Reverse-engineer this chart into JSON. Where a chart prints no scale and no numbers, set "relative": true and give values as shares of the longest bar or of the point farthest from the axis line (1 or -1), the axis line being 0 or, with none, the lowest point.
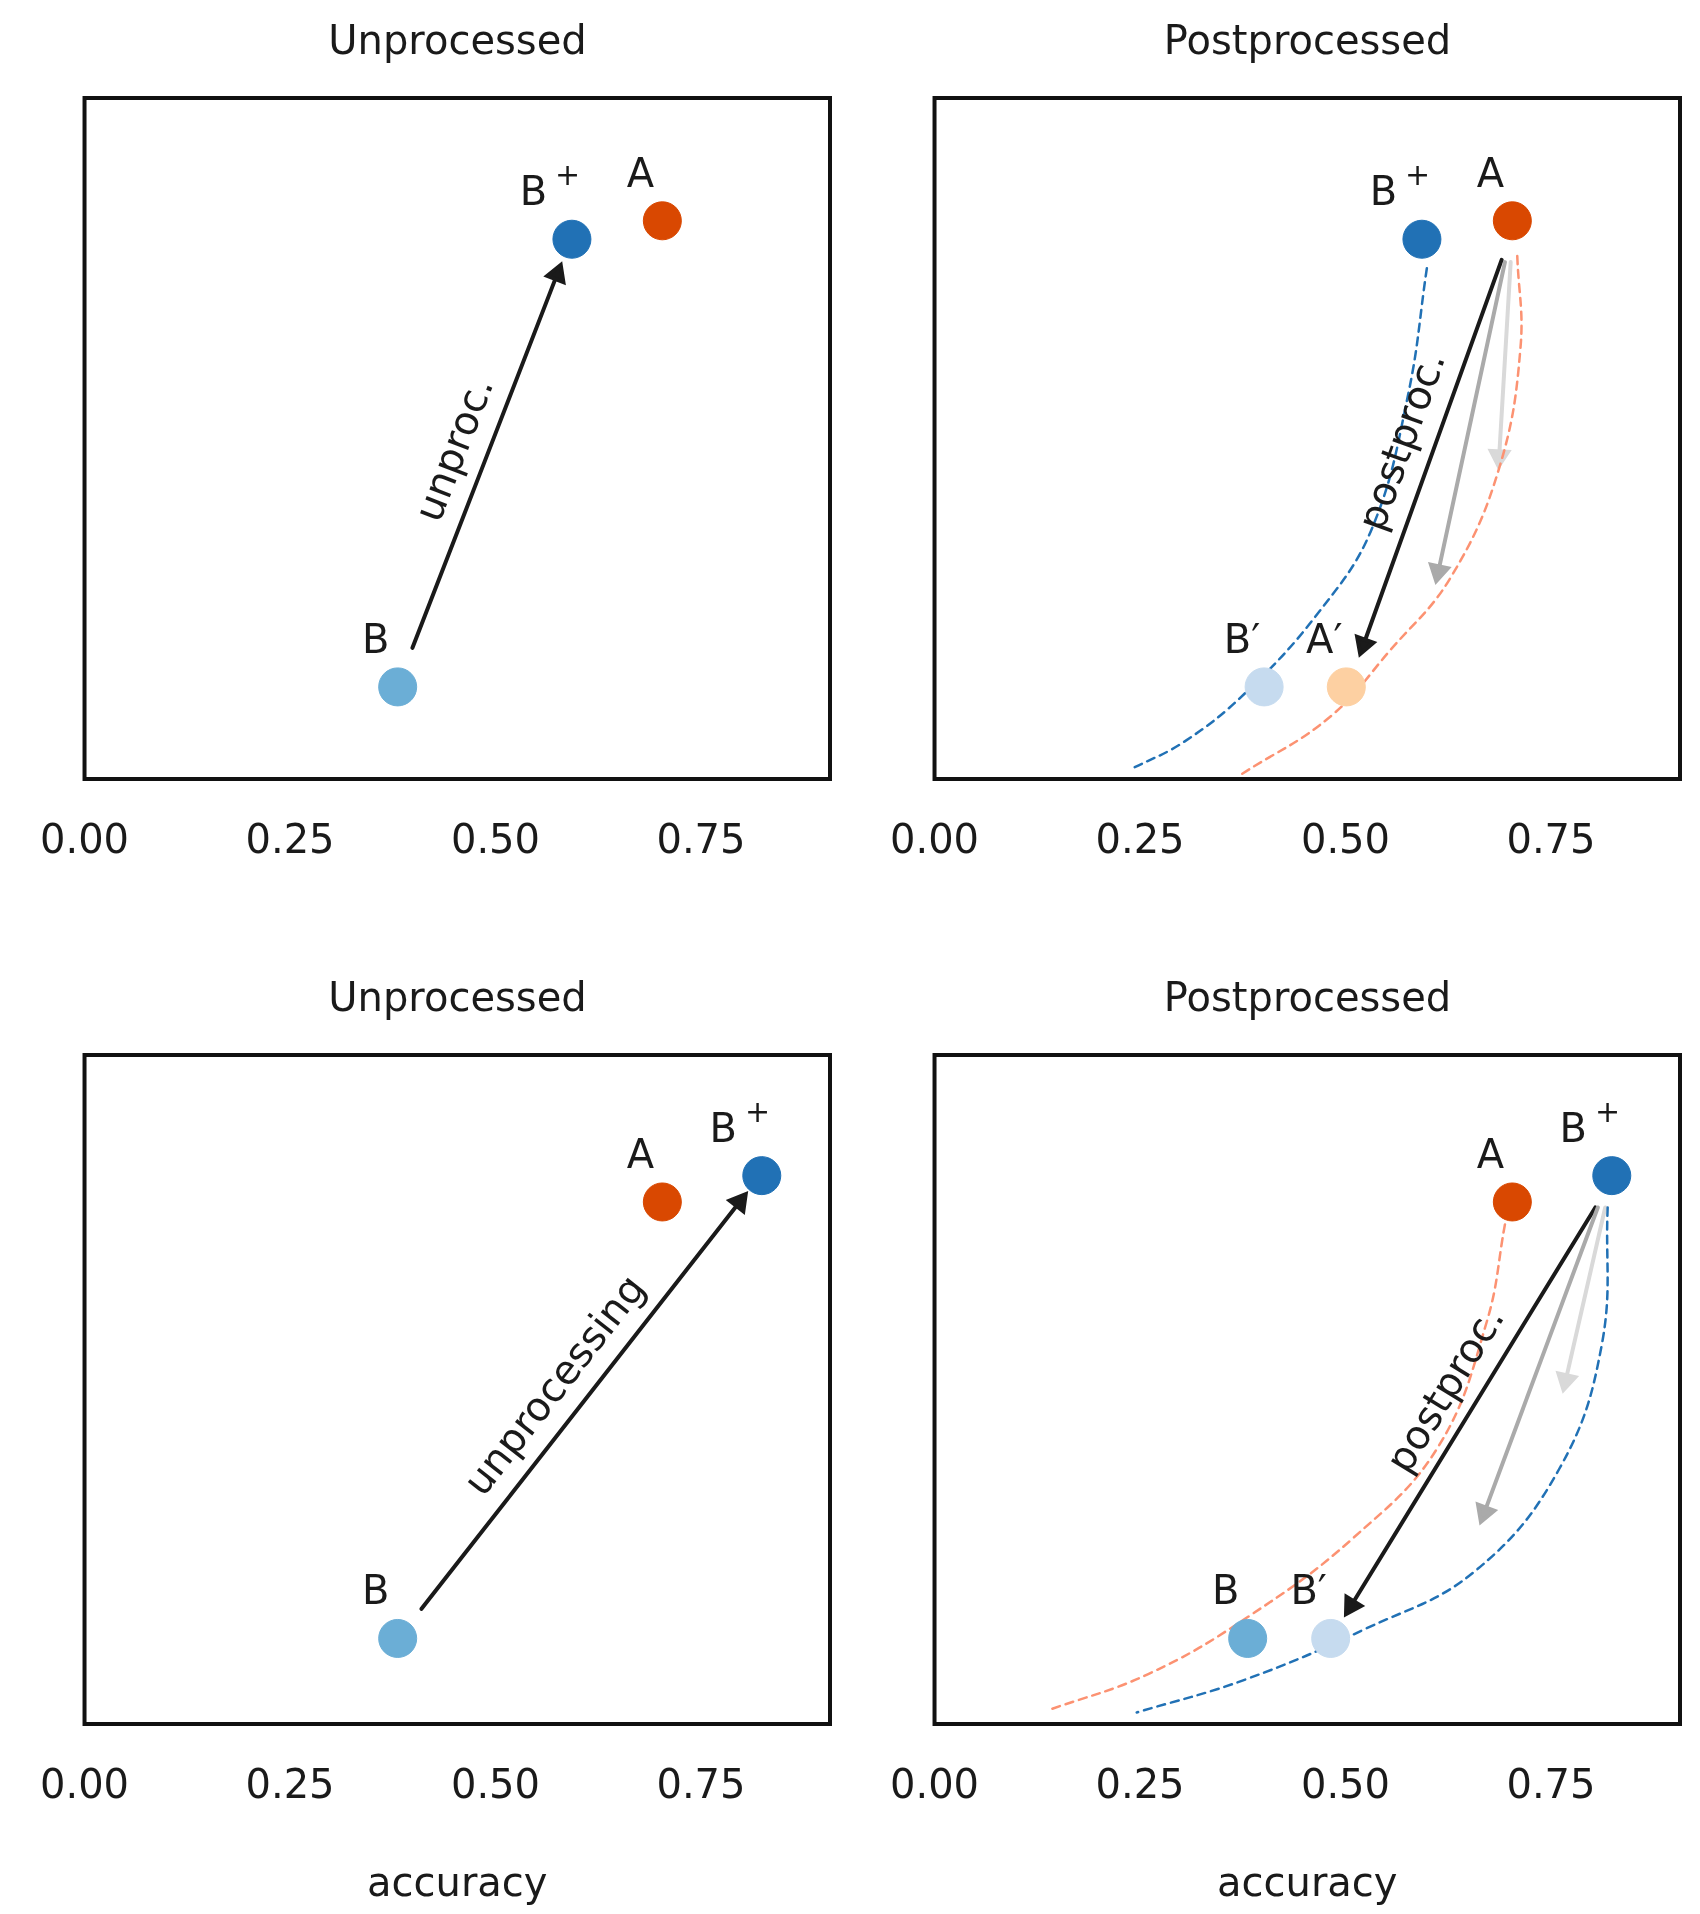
{
  "chart_data": [
    {
      "type": "scatter",
      "title": "Unprocessed",
      "xlim": [
        0,
        0.907
      ],
      "xticks": [
        {
          "value": 0,
          "label": "0.00"
        },
        {
          "value": 0.25,
          "label": "0.25"
        },
        {
          "value": 0.5,
          "label": "0.50"
        },
        {
          "value": 0.75,
          "label": "0.75"
        }
      ],
      "relative": true,
      "tick_labels": "x",
      "legend": false,
      "grid": false,
      "marker": "circle",
      "annotations": [
        "unproc."
      ],
      "series": [
        {
          "type": "line",
          "color": "#1a1a1a",
          "line_style": "solid",
          "marker": "triangle",
          "x": [
            0.399,
            0.575
          ],
          "values": [
            0.235,
            0.904
          ]
        },
        {
          "name": "B",
          "color": "#6baed6",
          "x": [
            0.381
          ],
          "values": [
            0.165
          ]
        },
        {
          "name": "B$^{+}$",
          "color": "#2171b5",
          "x": [
            0.593
          ],
          "values": [
            0.967
          ]
        },
        {
          "name": "A",
          "color": "#d94801",
          "x": [
            0.703
          ],
          "values": [
            1
          ]
        }
      ]
    },
    {
      "type": "scatter",
      "title": "Postprocessed",
      "xlim": [
        0,
        0.907
      ],
      "xticks": [
        {
          "value": 0,
          "label": "0.00"
        },
        {
          "value": 0.25,
          "label": "0.25"
        },
        {
          "value": 0.5,
          "label": "0.50"
        },
        {
          "value": 0.75,
          "label": "0.75"
        }
      ],
      "relative": true,
      "tick_labels": "x",
      "legend": false,
      "grid": false,
      "marker": "circle",
      "annotations": [
        "postproc."
      ],
      "series": [
        {
          "type": "line",
          "color": "#2171b5",
          "line_style": "dashed",
          "marker": "none",
          "x": [
            0.599,
            0.576,
            0.532,
            0.466,
            0.378,
            0.304,
            0.238
          ],
          "values": [
            0.915,
            0.687,
            0.448,
            0.296,
            0.154,
            0.067,
            0.017
          ]
        },
        {
          "type": "line",
          "color": "#fc9272",
          "line_style": "dashed",
          "marker": "none",
          "x": [
            0.709,
            0.713,
            0.687,
            0.628,
            0.554,
            0.481,
            0.374
          ],
          "values": [
            0.937,
            0.774,
            0.557,
            0.361,
            0.23,
            0.111,
            0.009
          ]
        },
        {
          "type": "line",
          "color": "#d9d9d9",
          "line_style": "solid",
          "marker": "triangle",
          "x": [
            0.701,
            0.687
          ],
          "values": [
            0.926,
            0.578
          ]
        },
        {
          "type": "line",
          "color": "#aaaaaa",
          "line_style": "solid",
          "marker": "triangle",
          "x": [
            0.694,
            0.613
          ],
          "values": [
            0.926,
            0.372
          ]
        },
        {
          "type": "line",
          "color": "#1a1a1a",
          "line_style": "solid",
          "marker": "triangle",
          "x": [
            0.69,
            0.522
          ],
          "values": [
            0.93,
            0.241
          ]
        },
        {
          "name": "B$^{+}$",
          "color": "#2171b5",
          "x": [
            0.593
          ],
          "values": [
            0.967
          ]
        },
        {
          "name": "A",
          "color": "#d94801",
          "x": [
            0.703
          ],
          "values": [
            1
          ]
        },
        {
          "name": "B′",
          "color": "#c6dbef",
          "x": [
            0.401
          ],
          "values": [
            0.165
          ]
        },
        {
          "name": "A′",
          "color": "#fdd0a2",
          "x": [
            0.501
          ],
          "values": [
            0.165
          ]
        }
      ]
    },
    {
      "type": "scatter",
      "title": "Unprocessed",
      "xlabel": "accuracy",
      "xlim": [
        0,
        0.907
      ],
      "xticks": [
        {
          "value": 0,
          "label": "0.00"
        },
        {
          "value": 0.25,
          "label": "0.25"
        },
        {
          "value": 0.5,
          "label": "0.50"
        },
        {
          "value": 0.75,
          "label": "0.75"
        }
      ],
      "relative": true,
      "tick_labels": "x",
      "legend": false,
      "grid": false,
      "marker": "circle",
      "annotations": [
        "unprocessing"
      ],
      "series": [
        {
          "type": "line",
          "color": "#1a1a1a",
          "line_style": "solid",
          "marker": "triangle",
          "x": [
            0.41,
            0.797
          ],
          "values": [
            0.21,
            0.952
          ]
        },
        {
          "name": "B",
          "color": "#6baed6",
          "x": [
            0.381
          ],
          "values": [
            0.156
          ]
        },
        {
          "name": "A",
          "color": "#d94801",
          "x": [
            0.703
          ],
          "values": [
            0.952
          ]
        },
        {
          "name": "B$^{+}$",
          "color": "#2171b5",
          "x": [
            0.824
          ],
          "values": [
            1
          ]
        }
      ]
    },
    {
      "type": "scatter",
      "title": "Postprocessed",
      "xlabel": "accuracy",
      "xlim": [
        0,
        0.907
      ],
      "xticks": [
        {
          "value": 0,
          "label": "0.00"
        },
        {
          "value": 0.25,
          "label": "0.25"
        },
        {
          "value": 0.5,
          "label": "0.50"
        },
        {
          "value": 0.75,
          "label": "0.75"
        }
      ],
      "relative": true,
      "tick_labels": "x",
      "legend": false,
      "grid": false,
      "marker": "circle",
      "annotations": [
        "postproc."
      ],
      "series": [
        {
          "type": "line",
          "color": "#fc9272",
          "line_style": "dashed",
          "marker": "none",
          "x": [
            0.694,
            0.672,
            0.613,
            0.51,
            0.381,
            0.26,
            0.138
          ],
          "values": [
            0.911,
            0.734,
            0.506,
            0.34,
            0.195,
            0.091,
            0.025
          ]
        },
        {
          "type": "line",
          "color": "#2171b5",
          "line_style": "dashed",
          "marker": "none",
          "x": [
            0.819,
            0.812,
            0.76,
            0.657,
            0.525,
            0.378,
            0.246
          ],
          "values": [
            0.942,
            0.693,
            0.465,
            0.278,
            0.174,
            0.081,
            0.021
          ]
        },
        {
          "type": "line",
          "color": "#d9d9d9",
          "line_style": "solid",
          "marker": "triangle",
          "x": [
            0.816,
            0.768
          ],
          "values": [
            0.942,
            0.627
          ]
        },
        {
          "type": "line",
          "color": "#aaaaaa",
          "line_style": "solid",
          "marker": "triangle",
          "x": [
            0.807,
            0.669
          ],
          "values": [
            0.942,
            0.386
          ]
        },
        {
          "type": "line",
          "color": "#1a1a1a",
          "line_style": "solid",
          "marker": "triangle",
          "x": [
            0.804,
            0.507
          ],
          "values": [
            0.942,
            0.216
          ]
        },
        {
          "name": "A",
          "color": "#d94801",
          "x": [
            0.703
          ],
          "values": [
            0.952
          ]
        },
        {
          "name": "B$^{+}$",
          "color": "#2171b5",
          "x": [
            0.824
          ],
          "values": [
            1
          ]
        },
        {
          "name": "B",
          "color": "#6baed6",
          "x": [
            0.381
          ],
          "values": [
            0.156
          ]
        },
        {
          "name": "B′",
          "color": "#c6dbef",
          "x": [
            0.482
          ],
          "values": [
            0.156
          ]
        }
      ]
    }
  ]
}
